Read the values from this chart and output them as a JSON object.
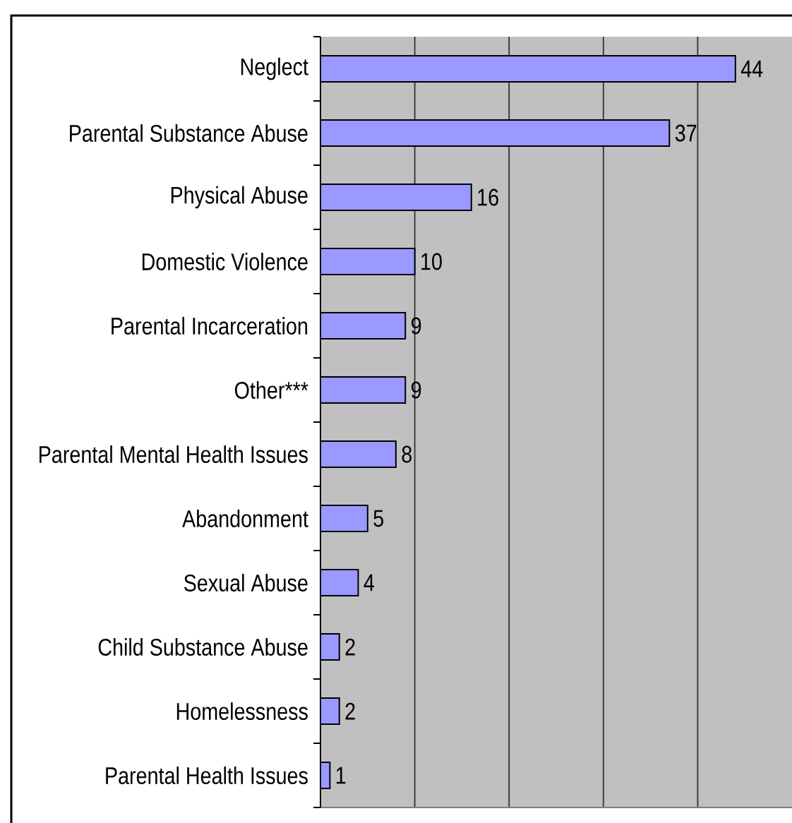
{
  "chart_data": {
    "type": "bar",
    "orientation": "horizontal",
    "categories": [
      "Neglect",
      "Parental Substance Abuse",
      "Physical Abuse",
      "Domestic Violence",
      "Parental Incarceration",
      "Other***",
      "Parental Mental Health Issues",
      "Abandonment",
      "Sexual Abuse",
      "Child Substance Abuse",
      "Homelessness",
      "Parental Health Issues"
    ],
    "values": [
      44,
      37,
      16,
      10,
      9,
      9,
      8,
      5,
      4,
      2,
      2,
      1
    ],
    "color": "#9999ff",
    "xlim": [
      0,
      50
    ],
    "xticks": [
      {
        "value": 10,
        "label": null
      },
      {
        "value": 20,
        "label": null
      },
      {
        "value": 30,
        "label": null
      },
      {
        "value": 40,
        "label": null
      }
    ],
    "grid": "x",
    "data_labels": true,
    "tick_labels": "y"
  }
}
